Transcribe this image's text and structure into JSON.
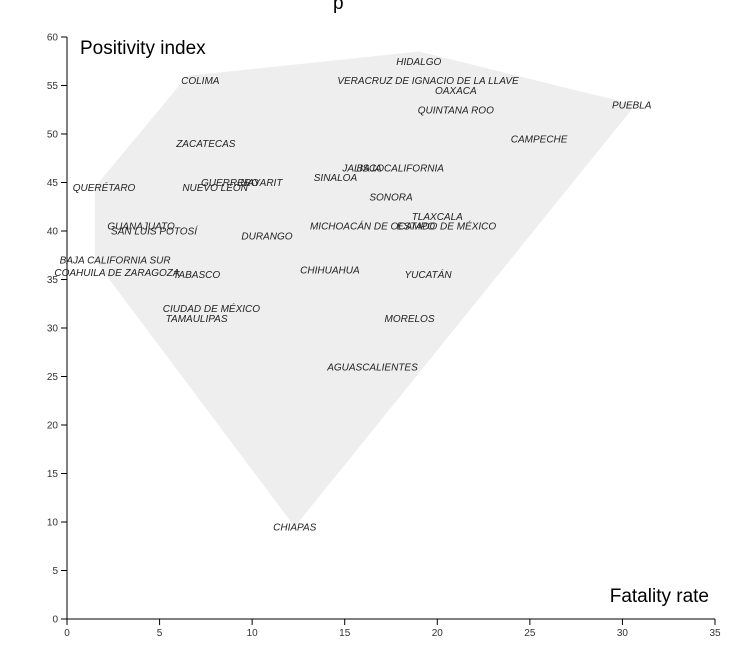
{
  "chart_data": {
    "type": "scatter",
    "title": "",
    "top_title_fragment": "p",
    "xlabel": "Fatality rate",
    "ylabel": "Positivity index",
    "xlim": [
      0,
      35
    ],
    "ylim": [
      0,
      60
    ],
    "xticks": [
      0,
      5,
      10,
      15,
      20,
      25,
      30,
      35
    ],
    "yticks": [
      0,
      5,
      10,
      15,
      20,
      25,
      30,
      35,
      40,
      45,
      50,
      55,
      60
    ],
    "hull_color": "#eeeeee",
    "points": [
      {
        "label": "HIDALGO",
        "x": 19,
        "y": 57.5
      },
      {
        "label": "COLIMA",
        "x": 7.2,
        "y": 55.5
      },
      {
        "label": "VERACRUZ DE IGNACIO DE LA LLAVE",
        "x": 19.5,
        "y": 55.5
      },
      {
        "label": "OAXACA",
        "x": 21,
        "y": 54.5
      },
      {
        "label": "PUEBLA",
        "x": 30.5,
        "y": 53
      },
      {
        "label": "QUINTANA ROO",
        "x": 21,
        "y": 52.5
      },
      {
        "label": "CAMPECHE",
        "x": 25.5,
        "y": 49.5
      },
      {
        "label": "ZACATECAS",
        "x": 7.5,
        "y": 49
      },
      {
        "label": "BAJA CALIFORNIA",
        "x": 18,
        "y": 46.5
      },
      {
        "label": "JALISCO",
        "x": 16,
        "y": 46.5
      },
      {
        "label": "SINALOA",
        "x": 14.5,
        "y": 45.5
      },
      {
        "label": "GUERRERO",
        "x": 8.8,
        "y": 45
      },
      {
        "label": "NAYARIT",
        "x": 10.5,
        "y": 45
      },
      {
        "label": "QUERÉTARO",
        "x": 2,
        "y": 44.5
      },
      {
        "label": "NUEVO LEÓN",
        "x": 8,
        "y": 44.5
      },
      {
        "label": "SONORA",
        "x": 17.5,
        "y": 43.5
      },
      {
        "label": "TLAXCALA",
        "x": 20,
        "y": 41.5
      },
      {
        "label": "GUANAJUATO",
        "x": 4,
        "y": 40.5
      },
      {
        "label": "SAN LUIS POTOSÍ",
        "x": 4.7,
        "y": 40
      },
      {
        "label": "MICHOACÁN DE OCAMPO",
        "x": 16.5,
        "y": 40.5
      },
      {
        "label": "ESTADO DE MÉXICO",
        "x": 20.5,
        "y": 40.5
      },
      {
        "label": "DURANGO",
        "x": 10.8,
        "y": 39.5
      },
      {
        "label": "BAJA CALIFORNIA SUR",
        "x": 2.6,
        "y": 37
      },
      {
        "label": "COAHUILA DE ZARAGOZA",
        "x": 2.7,
        "y": 35.7
      },
      {
        "label": "TABASCO",
        "x": 7,
        "y": 35.5
      },
      {
        "label": "CHIHUAHUA",
        "x": 14.2,
        "y": 36
      },
      {
        "label": "YUCATÁN",
        "x": 19.5,
        "y": 35.5
      },
      {
        "label": "CIUDAD DE MÉXICO",
        "x": 7.8,
        "y": 32
      },
      {
        "label": "TAMAULIPAS",
        "x": 7,
        "y": 31
      },
      {
        "label": "MORELOS",
        "x": 18.5,
        "y": 31
      },
      {
        "label": "AGUASCALIENTES",
        "x": 16.5,
        "y": 26
      },
      {
        "label": "CHIAPAS",
        "x": 12.3,
        "y": 9.5
      }
    ],
    "hull": [
      [
        1.5,
        44.5
      ],
      [
        6.5,
        56
      ],
      [
        19,
        58.5
      ],
      [
        30.7,
        53
      ],
      [
        12.3,
        9.5
      ],
      [
        1.5,
        37
      ]
    ]
  }
}
